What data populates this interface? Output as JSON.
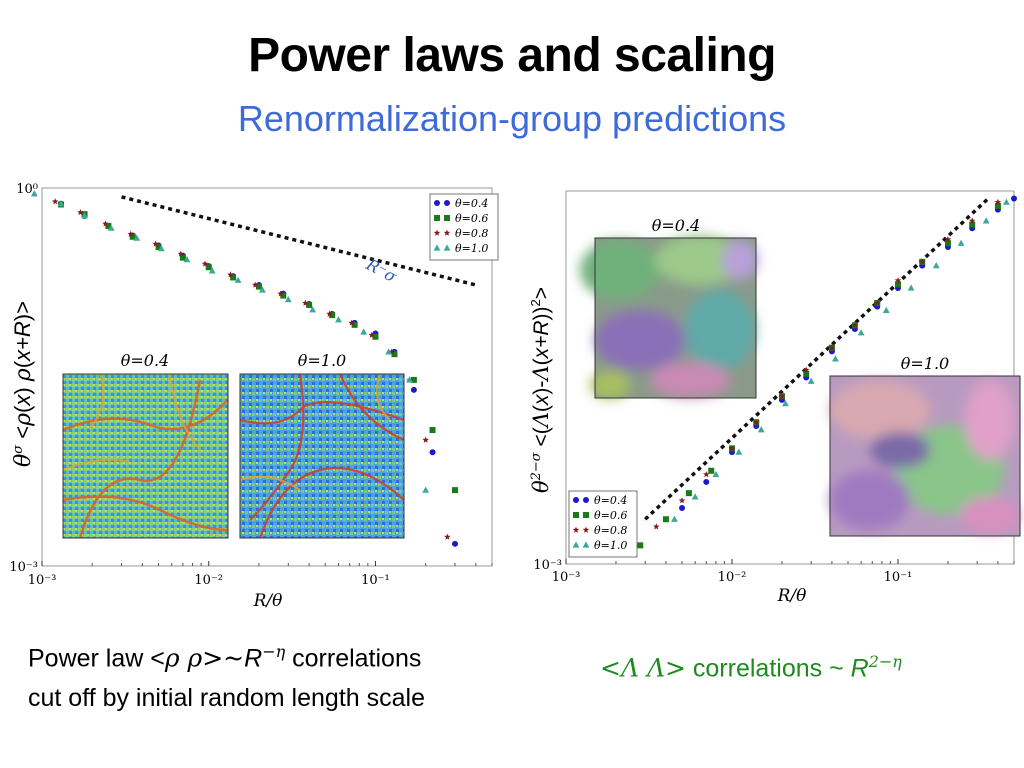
{
  "slide": {
    "title": "Power laws and scaling",
    "subtitle": "Renormalization-group predictions"
  },
  "left_caption": {
    "line1_prefix": "Power law <",
    "line1_greek": "ρ ρ>~",
    "line1_R": "R",
    "line1_exp": "−η",
    "line1_suffix": " correlations",
    "line2": "cut off by initial random length scale"
  },
  "right_caption": {
    "greek": "<Λ Λ>",
    "text": " correlations ~ ",
    "R": "R",
    "exp": "2−η"
  },
  "colors": {
    "title": "#000000",
    "subtitle": "#3f6bd8",
    "caption_green": "#1f8a1f",
    "series_0.4": "#1a1acc",
    "series_0.6": "#1a7a1a",
    "series_0.8": "#8b1a1a",
    "series_1.0": "#3aa89a"
  },
  "chart_data": [
    {
      "type": "scatter",
      "xscale": "log",
      "yscale": "log",
      "xlim": [
        0.001,
        0.5
      ],
      "ylim": [
        0.001,
        1
      ],
      "xticks": [
        "10⁻³",
        "10⁻²",
        "10⁻¹"
      ],
      "yticks": [
        "10⁰",
        "10⁻³"
      ],
      "xlabel": "R/θ",
      "ylabel": "θ^σ <ρ(x) ρ(x+R)>",
      "legend_position": "top-right",
      "reference_line": {
        "label": "R⁻σ",
        "x": [
          0.003,
          0.4
        ],
        "y": [
          0.85,
          0.17
        ]
      },
      "insets": [
        "θ=0.4",
        "θ=1.0"
      ],
      "series": [
        {
          "name": "θ=0.4",
          "marker": "circle",
          "x": [
            0.0013,
            0.0018,
            0.0025,
            0.0035,
            0.005,
            0.007,
            0.01,
            0.014,
            0.02,
            0.028,
            0.04,
            0.055,
            0.075,
            0.1,
            0.13,
            0.17,
            0.22,
            0.3
          ],
          "y": [
            0.75,
            0.6,
            0.5,
            0.42,
            0.35,
            0.29,
            0.24,
            0.2,
            0.17,
            0.145,
            0.12,
            0.1,
            0.085,
            0.07,
            0.05,
            0.025,
            0.008,
            0.0015
          ]
        },
        {
          "name": "θ=0.6",
          "marker": "square",
          "x": [
            0.0013,
            0.0018,
            0.0025,
            0.0035,
            0.005,
            0.007,
            0.01,
            0.014,
            0.02,
            0.028,
            0.04,
            0.055,
            0.075,
            0.1,
            0.13,
            0.17,
            0.22,
            0.3
          ],
          "y": [
            0.74,
            0.62,
            0.5,
            0.41,
            0.34,
            0.28,
            0.235,
            0.195,
            0.165,
            0.14,
            0.118,
            0.098,
            0.082,
            0.066,
            0.048,
            0.03,
            0.012,
            0.004
          ]
        },
        {
          "name": "θ=0.8",
          "marker": "star",
          "x": [
            0.0012,
            0.0017,
            0.0024,
            0.0034,
            0.0048,
            0.0068,
            0.0095,
            0.0135,
            0.019,
            0.027,
            0.038,
            0.053,
            0.072,
            0.095,
            0.125,
            0.16,
            0.2,
            0.27
          ],
          "y": [
            0.78,
            0.64,
            0.52,
            0.43,
            0.36,
            0.3,
            0.25,
            0.205,
            0.17,
            0.145,
            0.122,
            0.1,
            0.085,
            0.068,
            0.05,
            0.03,
            0.01,
            0.0017
          ]
        },
        {
          "name": "θ=1.0",
          "marker": "triangle",
          "x": [
            0.0009,
            0.0013,
            0.0018,
            0.0026,
            0.0037,
            0.0052,
            0.0074,
            0.0105,
            0.015,
            0.021,
            0.03,
            0.042,
            0.06,
            0.085,
            0.12,
            0.16,
            0.2
          ],
          "y": [
            0.9,
            0.75,
            0.6,
            0.48,
            0.4,
            0.33,
            0.27,
            0.22,
            0.185,
            0.155,
            0.13,
            0.108,
            0.09,
            0.072,
            0.05,
            0.03,
            0.004
          ]
        }
      ]
    },
    {
      "type": "scatter",
      "xscale": "log",
      "yscale": "log",
      "xlim": [
        0.001,
        0.5
      ],
      "xticks": [
        "10⁻³",
        "10⁻²",
        "10⁻¹"
      ],
      "yticks": [
        "10⁻³"
      ],
      "xlabel": "R/θ",
      "ylabel": "θ^(2−σ) <(Λ(x)-Λ(x+R))²>",
      "legend_position": "bottom-left",
      "reference_line": {
        "label": "",
        "x": [
          0.003,
          0.35
        ],
        "y_frac": [
          0.12,
          0.98
        ]
      },
      "insets": [
        "θ=0.4",
        "θ=1.0"
      ],
      "series": [
        {
          "name": "θ=0.4",
          "marker": "circle",
          "x": [
            0.005,
            0.007,
            0.01,
            0.014,
            0.02,
            0.028,
            0.04,
            0.055,
            0.075,
            0.1,
            0.14,
            0.2,
            0.28,
            0.4,
            0.5
          ],
          "yf": [
            0.15,
            0.22,
            0.3,
            0.37,
            0.44,
            0.5,
            0.57,
            0.63,
            0.69,
            0.74,
            0.8,
            0.85,
            0.9,
            0.95,
            0.98
          ]
        },
        {
          "name": "θ=0.6",
          "marker": "square",
          "x": [
            0.0028,
            0.004,
            0.0055,
            0.0075,
            0.01,
            0.014,
            0.02,
            0.028,
            0.04,
            0.055,
            0.075,
            0.1,
            0.14,
            0.2,
            0.28,
            0.4
          ],
          "yf": [
            0.05,
            0.12,
            0.19,
            0.25,
            0.31,
            0.38,
            0.45,
            0.51,
            0.58,
            0.64,
            0.7,
            0.75,
            0.81,
            0.86,
            0.91,
            0.96
          ]
        },
        {
          "name": "θ=0.8",
          "marker": "star",
          "x": [
            0.0035,
            0.005,
            0.007,
            0.01,
            0.014,
            0.02,
            0.028,
            0.04,
            0.055,
            0.075,
            0.1,
            0.14,
            0.2,
            0.28,
            0.4
          ],
          "yf": [
            0.1,
            0.17,
            0.24,
            0.31,
            0.38,
            0.45,
            0.52,
            0.58,
            0.64,
            0.7,
            0.76,
            0.81,
            0.87,
            0.92,
            0.97
          ]
        },
        {
          "name": "θ=1.0",
          "marker": "triangle",
          "x": [
            0.0045,
            0.006,
            0.008,
            0.011,
            0.015,
            0.021,
            0.03,
            0.042,
            0.06,
            0.085,
            0.12,
            0.17,
            0.24,
            0.34,
            0.45
          ],
          "yf": [
            0.12,
            0.18,
            0.24,
            0.3,
            0.36,
            0.43,
            0.49,
            0.55,
            0.62,
            0.68,
            0.74,
            0.8,
            0.86,
            0.92,
            0.97
          ]
        }
      ]
    }
  ]
}
